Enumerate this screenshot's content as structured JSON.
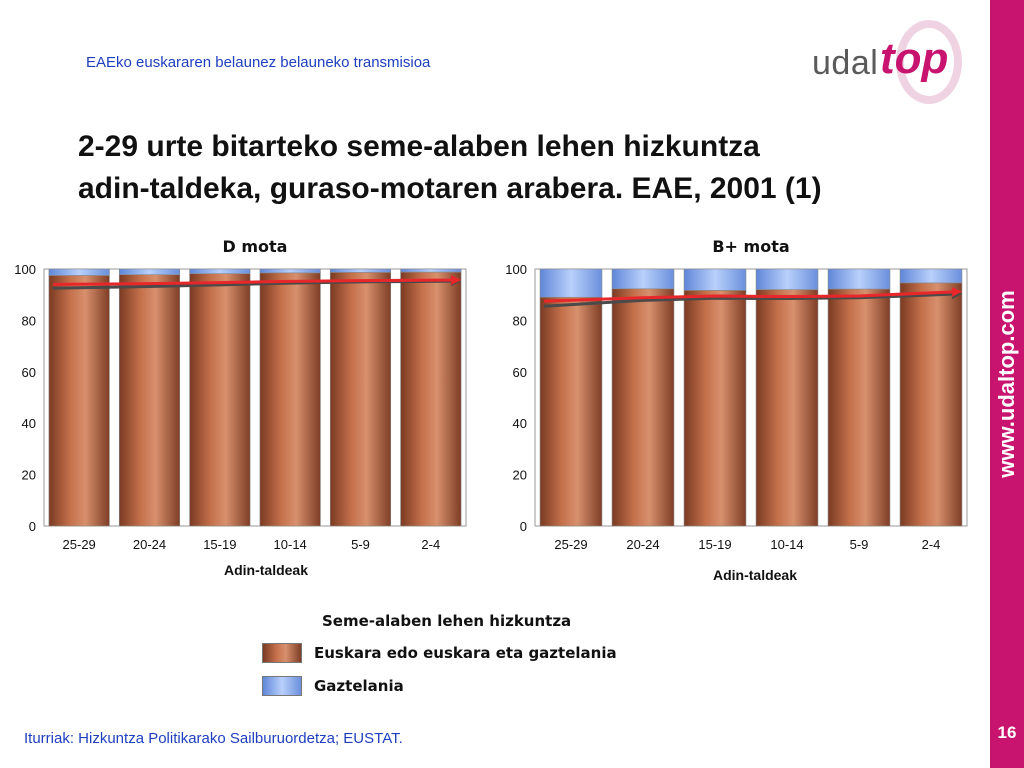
{
  "header": {
    "subtitle": "EAEko euskararen belaunez belauneko transmisioa",
    "logo": {
      "part1": "udal",
      "part2": "top"
    }
  },
  "title": {
    "line1": "2-29 urte bitarteko seme-alaben lehen hizkuntza",
    "line2": "adin-taldeka, guraso-motaren arabera. EAE, 2001 (1)"
  },
  "sidebar": {
    "url": "www.udaltop.com",
    "page_number": "16"
  },
  "source": "Iturriak: Hizkuntza Politikarako Sailburuordetza; EUSTAT.",
  "legend": {
    "title": "Seme-alaben lehen hizkuntza",
    "items": [
      {
        "label": "Euskara edo euskara eta gaztelania",
        "color": "#b5613f"
      },
      {
        "label": "Gaztelania",
        "color": "#8fb0f0"
      }
    ]
  },
  "colors": {
    "euskara": "#b5613f",
    "gaztelania": "#8fb0f0",
    "trend_red": "#e8272a",
    "trend_dark": "#4a4a4a",
    "brand": "#c8146e"
  },
  "chart_data": [
    {
      "type": "bar",
      "stacked": true,
      "title": "D mota",
      "xlabel": "Adin-taldeak",
      "ylabel": "",
      "ylim": [
        0,
        100
      ],
      "yticks": [
        0,
        20,
        40,
        60,
        80,
        100
      ],
      "categories": [
        "25-29",
        "20-24",
        "15-19",
        "10-14",
        "5-9",
        "2-4"
      ],
      "series": [
        {
          "name": "Euskara edo euskara eta gaztelania",
          "values": [
            97.5,
            97.8,
            98.2,
            98.5,
            98.7,
            98.8
          ]
        },
        {
          "name": "Gaztelania",
          "values": [
            2.5,
            2.2,
            1.8,
            1.5,
            1.3,
            1.2
          ]
        }
      ],
      "trend_lines": [
        {
          "color": "red",
          "values": [
            94,
            94.3,
            94.7,
            95.2,
            95.5,
            95.7
          ]
        },
        {
          "color": "dark",
          "values": [
            92.5,
            93.2,
            93.8,
            94.5,
            95.0,
            95.3
          ]
        }
      ]
    },
    {
      "type": "bar",
      "stacked": true,
      "title": "B+ mota",
      "xlabel": "Adin-taldeak",
      "ylabel": "",
      "ylim": [
        0,
        100
      ],
      "yticks": [
        0,
        20,
        40,
        60,
        80,
        100
      ],
      "categories": [
        "25-29",
        "20-24",
        "15-19",
        "10-14",
        "5-9",
        "2-4"
      ],
      "series": [
        {
          "name": "Euskara edo euskara eta gaztelania",
          "values": [
            89,
            92.3,
            91.7,
            92,
            92.2,
            94.6
          ]
        },
        {
          "name": "Gaztelania",
          "values": [
            11,
            7.7,
            8.3,
            8,
            7.8,
            5.4
          ]
        }
      ],
      "trend_lines": [
        {
          "color": "red",
          "values": [
            87.5,
            88.8,
            89.5,
            89.3,
            89.5,
            91.2
          ]
        },
        {
          "color": "dark",
          "values": [
            85.5,
            87.8,
            88.6,
            88.5,
            88.8,
            90.3
          ]
        }
      ]
    }
  ]
}
